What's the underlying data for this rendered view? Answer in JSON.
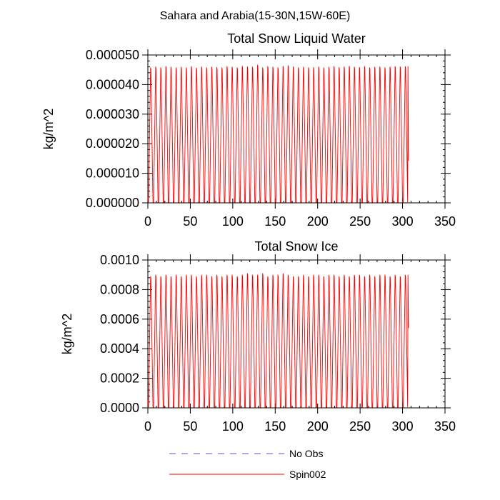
{
  "figure": {
    "title": "Sahara and Arabia(15-30N,15W-60E)"
  },
  "chart_data": [
    {
      "type": "line",
      "title": "Total Snow Liquid Water",
      "xlabel": "",
      "ylabel": "kg/m^2",
      "xlim": [
        0,
        350
      ],
      "ylim": [
        0,
        5e-05
      ],
      "xticks": [
        0,
        50,
        100,
        150,
        200,
        250,
        300,
        350
      ],
      "xtick_labels": [
        "0",
        "50",
        "100",
        "150",
        "200",
        "250",
        "300",
        "350"
      ],
      "yticks": [
        0,
        1e-05,
        2e-05,
        3e-05,
        4e-05,
        5e-05
      ],
      "ytick_labels": [
        "0.000000",
        "0.000010",
        "0.000020",
        "0.000030",
        "0.000040",
        "0.000050"
      ],
      "series": [
        {
          "name": "Spin002",
          "color": "#ff0000",
          "cycle_days": 6,
          "x_start": 0,
          "x_end": 307,
          "peak_values": [
            4.58e-05,
            4.61e-05,
            4.58e-05,
            4.62e-05,
            4.6e-05,
            4.58e-05,
            4.6e-05,
            4.58e-05,
            4.62e-05,
            4.57e-05,
            4.61e-05,
            4.58e-05,
            4.6e-05,
            4.59e-05,
            4.58e-05,
            4.62e-05,
            4.6e-05,
            4.58e-05,
            4.63e-05,
            4.61e-05,
            4.6e-05,
            4.67e-05,
            4.58e-05,
            4.62e-05,
            4.6e-05,
            4.58e-05,
            4.63e-05,
            4.65e-05,
            4.61e-05,
            4.58e-05,
            4.6e-05,
            4.58e-05,
            4.59e-05,
            4.61e-05,
            4.58e-05,
            4.6e-05,
            4.62e-05,
            4.59e-05,
            4.61e-05,
            4.63e-05,
            4.6e-05,
            4.59e-05,
            4.62e-05,
            4.58e-05,
            4.6e-05,
            4.61e-05,
            4.58e-05,
            4.6e-05,
            4.62e-05,
            4.61e-05,
            4.62e-05
          ],
          "trough_value": 2e-07,
          "end_value": 1.42e-05
        }
      ]
    },
    {
      "type": "line",
      "title": "Total Snow Ice",
      "xlabel": "",
      "ylabel": "kg/m^2",
      "xlim": [
        0,
        350
      ],
      "ylim": [
        0,
        0.001
      ],
      "xticks": [
        0,
        50,
        100,
        150,
        200,
        250,
        300,
        350
      ],
      "xtick_labels": [
        "0",
        "50",
        "100",
        "150",
        "200",
        "250",
        "300",
        "350"
      ],
      "yticks": [
        0,
        0.0002,
        0.0004,
        0.0006,
        0.0008,
        0.001
      ],
      "ytick_labels": [
        "0.0000",
        "0.0002",
        "0.0004",
        "0.0006",
        "0.0008",
        "0.0010"
      ],
      "series": [
        {
          "name": "Spin002",
          "color": "#ff0000",
          "cycle_days": 6,
          "x_start": 0,
          "x_end": 307,
          "peak_values": [
            0.00089,
            0.0009,
            0.00089,
            0.0009,
            0.00089,
            0.0009,
            0.00089,
            0.0009,
            0.0009,
            0.00089,
            0.0009,
            0.0009,
            0.00089,
            0.0009,
            0.00089,
            0.0009,
            0.0009,
            0.00089,
            0.0009,
            0.00091,
            0.0009,
            0.0009,
            0.00091,
            0.00089,
            0.0009,
            0.0009,
            0.00091,
            0.0009,
            0.00089,
            0.00089,
            0.0009,
            0.00089,
            0.0009,
            0.0009,
            0.00089,
            0.0009,
            0.0009,
            0.00089,
            0.0009,
            0.00089,
            0.0009,
            0.0009,
            0.00089,
            0.0009,
            0.00089,
            0.0009,
            0.0009,
            0.00089,
            0.0009,
            0.00089,
            0.0009
          ],
          "trough_value": 5e-06,
          "end_value": 0.00054
        }
      ]
    }
  ],
  "legend": {
    "placement": "bottom",
    "entries": [
      {
        "name": "No Obs",
        "color": "#5555cc",
        "style": "dashed"
      },
      {
        "name": "Spin002",
        "color": "#ff0000",
        "style": "solid"
      }
    ]
  }
}
